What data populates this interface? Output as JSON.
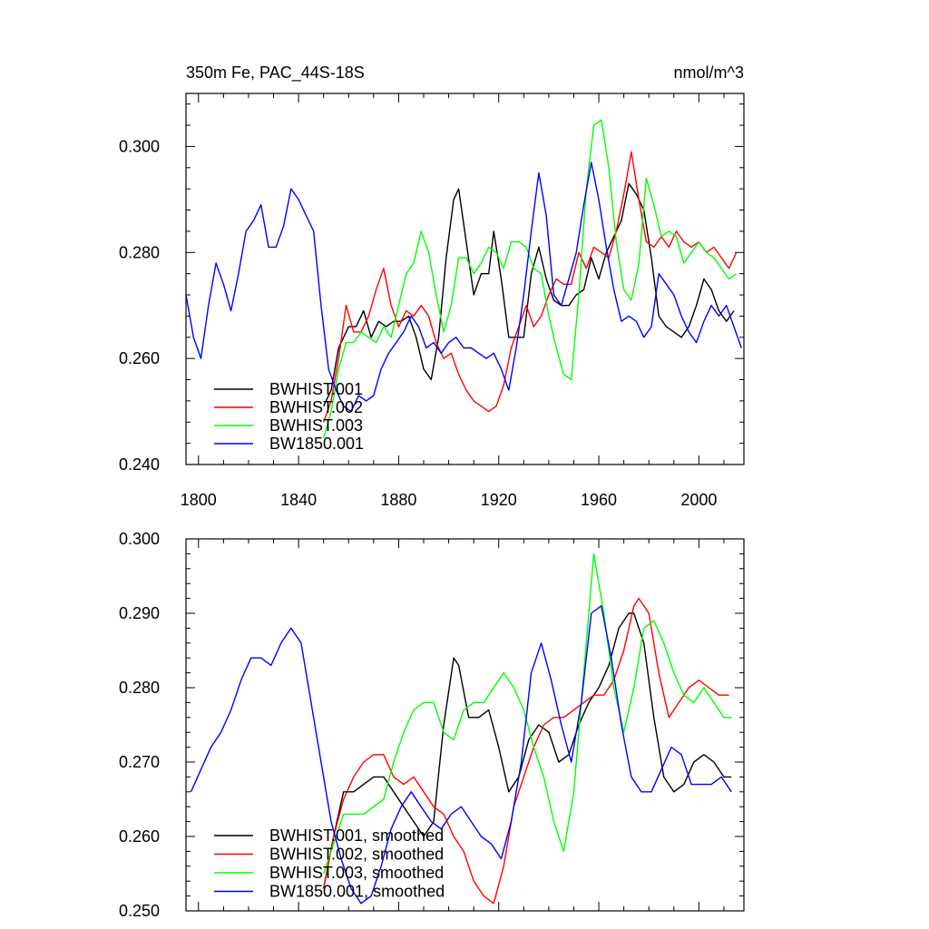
{
  "figure": {
    "title_left": "350m Fe, PAC_44S-18S",
    "title_right": "nmol/m^3"
  },
  "chart_data": [
    {
      "type": "line",
      "id": "raw",
      "xlim": [
        1795,
        2018
      ],
      "ylim": [
        0.24,
        0.31
      ],
      "xticks": [
        1800,
        1840,
        1880,
        1920,
        1960,
        2000
      ],
      "xtick_labels": [
        "1800",
        "1840",
        "1880",
        "1920",
        "1960",
        "2000"
      ],
      "yticks": [
        0.24,
        0.26,
        0.28,
        0.3
      ],
      "ytick_labels": [
        "0.240",
        "0.260",
        "0.280",
        "0.300"
      ],
      "legend_placement": "bottom-left",
      "series": [
        {
          "name": "BWHIST.001",
          "color": "#000000",
          "x": [
            1850,
            1853,
            1856,
            1860,
            1863,
            1866,
            1869,
            1872,
            1875,
            1878,
            1881,
            1884,
            1887,
            1890,
            1893,
            1896,
            1899,
            1902,
            1904,
            1907,
            1910,
            1913,
            1916,
            1918,
            1921,
            1924,
            1927,
            1930,
            1933,
            1936,
            1939,
            1942,
            1945,
            1948,
            1951,
            1954,
            1957,
            1960,
            1963,
            1966,
            1969,
            1972,
            1975,
            1978,
            1981,
            1984,
            1987,
            1990,
            1993,
            1996,
            1999,
            2002,
            2005,
            2008,
            2011,
            2014
          ],
          "y": [
            0.251,
            0.254,
            0.262,
            0.266,
            0.266,
            0.269,
            0.264,
            0.267,
            0.266,
            0.267,
            0.267,
            0.268,
            0.264,
            0.258,
            0.256,
            0.264,
            0.279,
            0.29,
            0.292,
            0.282,
            0.272,
            0.276,
            0.276,
            0.284,
            0.275,
            0.264,
            0.264,
            0.264,
            0.276,
            0.281,
            0.275,
            0.271,
            0.27,
            0.27,
            0.272,
            0.273,
            0.279,
            0.275,
            0.28,
            0.283,
            0.286,
            0.293,
            0.291,
            0.288,
            0.279,
            0.268,
            0.266,
            0.265,
            0.264,
            0.266,
            0.27,
            0.275,
            0.273,
            0.269,
            0.267,
            0.269
          ]
        },
        {
          "name": "BWHIST.002",
          "color": "#ff0000",
          "x": [
            1850,
            1853,
            1856,
            1859,
            1862,
            1865,
            1868,
            1871,
            1874,
            1877,
            1880,
            1883,
            1886,
            1889,
            1892,
            1895,
            1898,
            1901,
            1904,
            1907,
            1910,
            1913,
            1916,
            1919,
            1922,
            1925,
            1928,
            1931,
            1934,
            1937,
            1940,
            1943,
            1946,
            1949,
            1952,
            1955,
            1958,
            1961,
            1964,
            1967,
            1970,
            1973,
            1976,
            1979,
            1982,
            1985,
            1988,
            1991,
            1994,
            1997,
            2000,
            2003,
            2006,
            2009,
            2012,
            2015
          ],
          "y": [
            0.248,
            0.252,
            0.26,
            0.27,
            0.265,
            0.265,
            0.268,
            0.273,
            0.277,
            0.27,
            0.266,
            0.269,
            0.268,
            0.27,
            0.268,
            0.263,
            0.26,
            0.261,
            0.257,
            0.254,
            0.252,
            0.251,
            0.25,
            0.251,
            0.255,
            0.262,
            0.266,
            0.27,
            0.266,
            0.268,
            0.272,
            0.275,
            0.274,
            0.274,
            0.28,
            0.277,
            0.281,
            0.28,
            0.279,
            0.284,
            0.291,
            0.299,
            0.29,
            0.282,
            0.281,
            0.283,
            0.281,
            0.284,
            0.282,
            0.281,
            0.282,
            0.28,
            0.281,
            0.279,
            0.277,
            0.28
          ]
        },
        {
          "name": "BWHIST.003",
          "color": "#00ff00",
          "x": [
            1850,
            1853,
            1856,
            1859,
            1862,
            1865,
            1868,
            1871,
            1874,
            1877,
            1880,
            1883,
            1886,
            1889,
            1892,
            1895,
            1898,
            1901,
            1904,
            1907,
            1910,
            1913,
            1916,
            1919,
            1922,
            1925,
            1928,
            1931,
            1934,
            1937,
            1940,
            1943,
            1946,
            1949,
            1952,
            1955,
            1958,
            1961,
            1964,
            1967,
            1970,
            1973,
            1976,
            1979,
            1982,
            1985,
            1988,
            1991,
            1994,
            1997,
            2000,
            2003,
            2006,
            2009,
            2012,
            2015
          ],
          "y": [
            0.245,
            0.25,
            0.258,
            0.263,
            0.263,
            0.265,
            0.264,
            0.263,
            0.266,
            0.264,
            0.27,
            0.276,
            0.278,
            0.284,
            0.28,
            0.272,
            0.265,
            0.27,
            0.279,
            0.279,
            0.276,
            0.278,
            0.281,
            0.28,
            0.277,
            0.282,
            0.282,
            0.281,
            0.277,
            0.276,
            0.268,
            0.262,
            0.257,
            0.256,
            0.272,
            0.292,
            0.304,
            0.305,
            0.296,
            0.282,
            0.273,
            0.271,
            0.278,
            0.294,
            0.289,
            0.283,
            0.284,
            0.283,
            0.278,
            0.28,
            0.282,
            0.28,
            0.279,
            0.277,
            0.275,
            0.276
          ]
        },
        {
          "name": "BW1850.001",
          "color": "#0000ff",
          "x": [
            1795,
            1798,
            1801,
            1804,
            1807,
            1810,
            1813,
            1816,
            1819,
            1822,
            1825,
            1828,
            1831,
            1834,
            1837,
            1840,
            1843,
            1846,
            1849,
            1852,
            1855,
            1858,
            1861,
            1864,
            1867,
            1870,
            1873,
            1876,
            1879,
            1882,
            1885,
            1888,
            1891,
            1894,
            1897,
            1900,
            1903,
            1906,
            1909,
            1912,
            1915,
            1918,
            1921,
            1924,
            1927,
            1930,
            1933,
            1936,
            1939,
            1942,
            1945,
            1948,
            1951,
            1954,
            1957,
            1960,
            1963,
            1966,
            1969,
            1972,
            1975,
            1978,
            1981,
            1984,
            1987,
            1990,
            1993,
            1996,
            1999,
            2002,
            2005,
            2008,
            2011,
            2014,
            2017
          ],
          "y": [
            0.272,
            0.264,
            0.26,
            0.27,
            0.278,
            0.274,
            0.269,
            0.276,
            0.284,
            0.286,
            0.289,
            0.281,
            0.281,
            0.285,
            0.292,
            0.29,
            0.287,
            0.284,
            0.27,
            0.258,
            0.254,
            0.251,
            0.25,
            0.253,
            0.252,
            0.253,
            0.258,
            0.261,
            0.263,
            0.265,
            0.268,
            0.266,
            0.262,
            0.263,
            0.261,
            0.263,
            0.264,
            0.262,
            0.262,
            0.261,
            0.26,
            0.261,
            0.258,
            0.254,
            0.262,
            0.272,
            0.284,
            0.295,
            0.287,
            0.272,
            0.27,
            0.275,
            0.28,
            0.289,
            0.297,
            0.29,
            0.281,
            0.273,
            0.267,
            0.268,
            0.267,
            0.264,
            0.266,
            0.276,
            0.274,
            0.272,
            0.268,
            0.265,
            0.263,
            0.267,
            0.27,
            0.268,
            0.27,
            0.266,
            0.262
          ]
        }
      ]
    },
    {
      "type": "line",
      "id": "smoothed",
      "xlim": [
        1795,
        2018
      ],
      "ylim": [
        0.25,
        0.3
      ],
      "xticks": [
        1800,
        1840,
        1880,
        1920,
        1960,
        2000
      ],
      "xtick_labels": [],
      "yticks": [
        0.25,
        0.26,
        0.27,
        0.28,
        0.29,
        0.3
      ],
      "ytick_labels": [
        "0.250",
        "0.260",
        "0.270",
        "0.280",
        "0.290",
        "0.300"
      ],
      "legend_placement": "bottom-left",
      "series": [
        {
          "name": "BWHIST.001, smoothed",
          "color": "#000000",
          "x": [
            1850,
            1854,
            1858,
            1862,
            1866,
            1870,
            1874,
            1878,
            1882,
            1886,
            1890,
            1894,
            1898,
            1902,
            1904,
            1908,
            1912,
            1916,
            1920,
            1924,
            1928,
            1932,
            1936,
            1940,
            1944,
            1948,
            1952,
            1956,
            1960,
            1964,
            1968,
            1972,
            1974,
            1978,
            1982,
            1986,
            1990,
            1994,
            1998,
            2002,
            2006,
            2010,
            2013
          ],
          "y": [
            0.253,
            0.26,
            0.266,
            0.266,
            0.267,
            0.268,
            0.268,
            0.266,
            0.264,
            0.262,
            0.26,
            0.262,
            0.275,
            0.284,
            0.283,
            0.276,
            0.276,
            0.277,
            0.272,
            0.266,
            0.268,
            0.273,
            0.275,
            0.274,
            0.27,
            0.271,
            0.275,
            0.278,
            0.28,
            0.283,
            0.288,
            0.29,
            0.29,
            0.286,
            0.276,
            0.268,
            0.266,
            0.267,
            0.27,
            0.271,
            0.27,
            0.268,
            0.268
          ]
        },
        {
          "name": "BWHIST.002, smoothed",
          "color": "#ff0000",
          "x": [
            1850,
            1854,
            1858,
            1862,
            1866,
            1870,
            1874,
            1878,
            1882,
            1886,
            1890,
            1894,
            1898,
            1902,
            1906,
            1910,
            1914,
            1918,
            1922,
            1926,
            1930,
            1934,
            1938,
            1942,
            1946,
            1950,
            1954,
            1958,
            1962,
            1966,
            1970,
            1974,
            1976,
            1980,
            1984,
            1988,
            1992,
            1996,
            2000,
            2004,
            2008,
            2012
          ],
          "y": [
            0.253,
            0.26,
            0.265,
            0.268,
            0.27,
            0.271,
            0.271,
            0.268,
            0.267,
            0.268,
            0.266,
            0.264,
            0.263,
            0.26,
            0.258,
            0.254,
            0.252,
            0.251,
            0.256,
            0.264,
            0.268,
            0.272,
            0.275,
            0.276,
            0.276,
            0.277,
            0.278,
            0.279,
            0.279,
            0.281,
            0.285,
            0.291,
            0.292,
            0.29,
            0.282,
            0.276,
            0.278,
            0.28,
            0.281,
            0.28,
            0.279,
            0.279
          ]
        },
        {
          "name": "BWHIST.003, smoothed",
          "color": "#00ff00",
          "x": [
            1850,
            1854,
            1858,
            1862,
            1866,
            1870,
            1874,
            1878,
            1882,
            1886,
            1890,
            1894,
            1898,
            1902,
            1906,
            1910,
            1914,
            1918,
            1922,
            1926,
            1930,
            1934,
            1938,
            1942,
            1946,
            1950,
            1954,
            1958,
            1962,
            1966,
            1970,
            1974,
            1978,
            1982,
            1986,
            1990,
            1994,
            1998,
            2002,
            2006,
            2010,
            2013
          ],
          "y": [
            0.255,
            0.259,
            0.263,
            0.263,
            0.263,
            0.264,
            0.265,
            0.27,
            0.274,
            0.277,
            0.278,
            0.278,
            0.274,
            0.273,
            0.277,
            0.278,
            0.278,
            0.28,
            0.282,
            0.28,
            0.277,
            0.272,
            0.268,
            0.262,
            0.258,
            0.266,
            0.282,
            0.298,
            0.29,
            0.28,
            0.274,
            0.28,
            0.288,
            0.289,
            0.286,
            0.282,
            0.279,
            0.278,
            0.28,
            0.278,
            0.276,
            0.276
          ]
        },
        {
          "name": "BW1850.001, smoothed",
          "color": "#0000ff",
          "x": [
            1797,
            1801,
            1805,
            1809,
            1813,
            1817,
            1821,
            1825,
            1829,
            1833,
            1837,
            1841,
            1845,
            1849,
            1853,
            1857,
            1861,
            1865,
            1869,
            1873,
            1877,
            1881,
            1885,
            1889,
            1893,
            1897,
            1901,
            1905,
            1909,
            1913,
            1917,
            1921,
            1925,
            1929,
            1933,
            1937,
            1941,
            1945,
            1949,
            1953,
            1957,
            1961,
            1965,
            1969,
            1973,
            1977,
            1981,
            1985,
            1989,
            1993,
            1997,
            2001,
            2005,
            2009,
            2013
          ],
          "y": [
            0.266,
            0.269,
            0.272,
            0.274,
            0.277,
            0.281,
            0.284,
            0.284,
            0.283,
            0.286,
            0.288,
            0.286,
            0.278,
            0.27,
            0.262,
            0.257,
            0.253,
            0.251,
            0.252,
            0.256,
            0.261,
            0.264,
            0.266,
            0.264,
            0.262,
            0.261,
            0.263,
            0.264,
            0.262,
            0.26,
            0.259,
            0.257,
            0.262,
            0.27,
            0.282,
            0.286,
            0.281,
            0.275,
            0.27,
            0.278,
            0.29,
            0.291,
            0.284,
            0.275,
            0.268,
            0.266,
            0.266,
            0.269,
            0.272,
            0.271,
            0.267,
            0.267,
            0.267,
            0.268,
            0.266
          ]
        }
      ]
    }
  ]
}
